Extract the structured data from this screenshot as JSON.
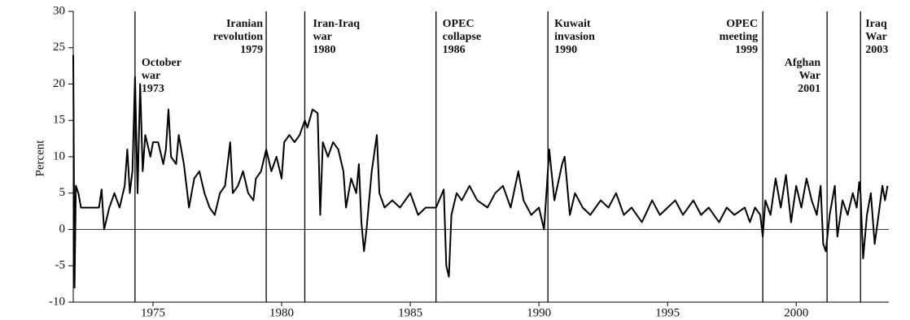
{
  "chart_data": {
    "type": "line",
    "ylabel": "Percent",
    "color": "#000000",
    "xlim": [
      1971.9,
      2003.6
    ],
    "xticks": [
      1975,
      1980,
      1985,
      1990,
      1995,
      2000
    ],
    "ylim": [
      -10,
      30
    ],
    "yticks": [
      -10,
      -5,
      0,
      5,
      10,
      15,
      20,
      25,
      30
    ],
    "hline": 0,
    "x": [
      1971.9,
      1971.95,
      1972.0,
      1972.1,
      1972.2,
      1972.6,
      1972.9,
      1973.0,
      1973.1,
      1973.3,
      1973.5,
      1973.7,
      1973.9,
      1974.0,
      1974.1,
      1974.2,
      1974.3,
      1974.4,
      1974.5,
      1974.6,
      1974.7,
      1974.9,
      1975.0,
      1975.2,
      1975.4,
      1975.5,
      1975.6,
      1975.7,
      1975.9,
      1976.0,
      1976.2,
      1976.3,
      1976.4,
      1976.6,
      1976.8,
      1977.0,
      1977.2,
      1977.4,
      1977.6,
      1977.8,
      1978.0,
      1978.1,
      1978.3,
      1978.5,
      1978.7,
      1978.9,
      1979.0,
      1979.2,
      1979.4,
      1979.6,
      1979.8,
      1980.0,
      1980.1,
      1980.3,
      1980.5,
      1980.7,
      1980.9,
      1981.0,
      1981.2,
      1981.4,
      1981.5,
      1981.6,
      1981.8,
      1982.0,
      1982.2,
      1982.4,
      1982.5,
      1982.7,
      1982.9,
      1983.0,
      1983.1,
      1983.2,
      1983.3,
      1983.5,
      1983.7,
      1983.8,
      1984.0,
      1984.3,
      1984.6,
      1985.0,
      1985.3,
      1985.6,
      1986.0,
      1986.3,
      1986.4,
      1986.5,
      1986.6,
      1986.8,
      1987.0,
      1987.3,
      1987.6,
      1988.0,
      1988.3,
      1988.6,
      1988.9,
      1989.2,
      1989.4,
      1989.7,
      1990.0,
      1990.2,
      1990.4,
      1990.6,
      1990.9,
      1991.0,
      1991.2,
      1991.4,
      1991.7,
      1992.0,
      1992.4,
      1992.7,
      1993.0,
      1993.3,
      1993.6,
      1994.0,
      1994.4,
      1994.7,
      1995.0,
      1995.3,
      1995.6,
      1996.0,
      1996.3,
      1996.6,
      1997.0,
      1997.3,
      1997.6,
      1998.0,
      1998.2,
      1998.4,
      1998.6,
      1998.7,
      1998.8,
      1999.0,
      1999.2,
      1999.4,
      1999.6,
      1999.8,
      2000.0,
      2000.2,
      2000.4,
      2000.6,
      2000.8,
      2000.95,
      2001.05,
      2001.15,
      2001.3,
      2001.5,
      2001.6,
      2001.8,
      2002.0,
      2002.2,
      2002.35,
      2002.45,
      2002.5,
      2002.6,
      2002.75,
      2002.9,
      2003.05,
      2003.2,
      2003.35,
      2003.45,
      2003.55
    ],
    "values": [
      24,
      -8,
      6,
      5,
      3,
      3,
      3,
      5.5,
      0,
      3,
      5,
      3,
      6,
      11,
      5,
      8,
      21,
      5,
      20,
      8,
      13,
      10,
      12,
      12,
      9,
      11,
      16.5,
      10,
      9,
      13,
      9,
      6,
      3,
      7,
      8,
      5,
      3,
      2,
      5,
      6,
      12,
      5,
      6,
      8,
      5,
      4,
      7,
      8,
      11,
      8,
      10,
      7,
      12,
      13,
      12,
      13,
      15,
      14,
      16.5,
      16,
      2,
      12,
      10,
      12,
      11,
      8,
      3,
      7,
      5,
      9,
      1,
      -3,
      0,
      8,
      13,
      5,
      3,
      4,
      3,
      5,
      2,
      3,
      3,
      5.5,
      -5,
      -6.5,
      2,
      5,
      4,
      6,
      4,
      3,
      5,
      6,
      3,
      8,
      4,
      2,
      3,
      0,
      11,
      4,
      9,
      10,
      2,
      5,
      3,
      2,
      4,
      3,
      5,
      2,
      3,
      1,
      4,
      2,
      3,
      4,
      2,
      4,
      2,
      3,
      1,
      3,
      2,
      3,
      1,
      3,
      2,
      -1,
      4,
      2,
      7,
      3,
      7.5,
      1,
      6,
      3,
      7,
      4,
      2,
      6,
      -2,
      -3,
      2,
      6,
      -1,
      4,
      2,
      5,
      3,
      6.5,
      5,
      -4,
      2,
      5,
      -2,
      2,
      6,
      4,
      6
    ],
    "events": [
      {
        "x": 1974.3,
        "label": [
          "October",
          "war",
          "1973"
        ]
      },
      {
        "x": 1979.4,
        "label": [
          "Iranian",
          "revolution",
          "1979"
        ]
      },
      {
        "x": 1980.9,
        "label": [
          "Iran-Iraq",
          "war",
          "1980"
        ]
      },
      {
        "x": 1986.0,
        "label": [
          "OPEC",
          "collapse",
          "1986"
        ]
      },
      {
        "x": 1990.35,
        "label": [
          "Kuwait",
          "invasion",
          "1990"
        ]
      },
      {
        "x": 1998.7,
        "label": [
          "OPEC",
          "meeting",
          "1999"
        ]
      },
      {
        "x": 2001.2,
        "label": [
          "Afghan",
          "War",
          "2001"
        ]
      },
      {
        "x": 2002.5,
        "label": [
          "Iraq",
          "War",
          "2003"
        ]
      }
    ]
  }
}
